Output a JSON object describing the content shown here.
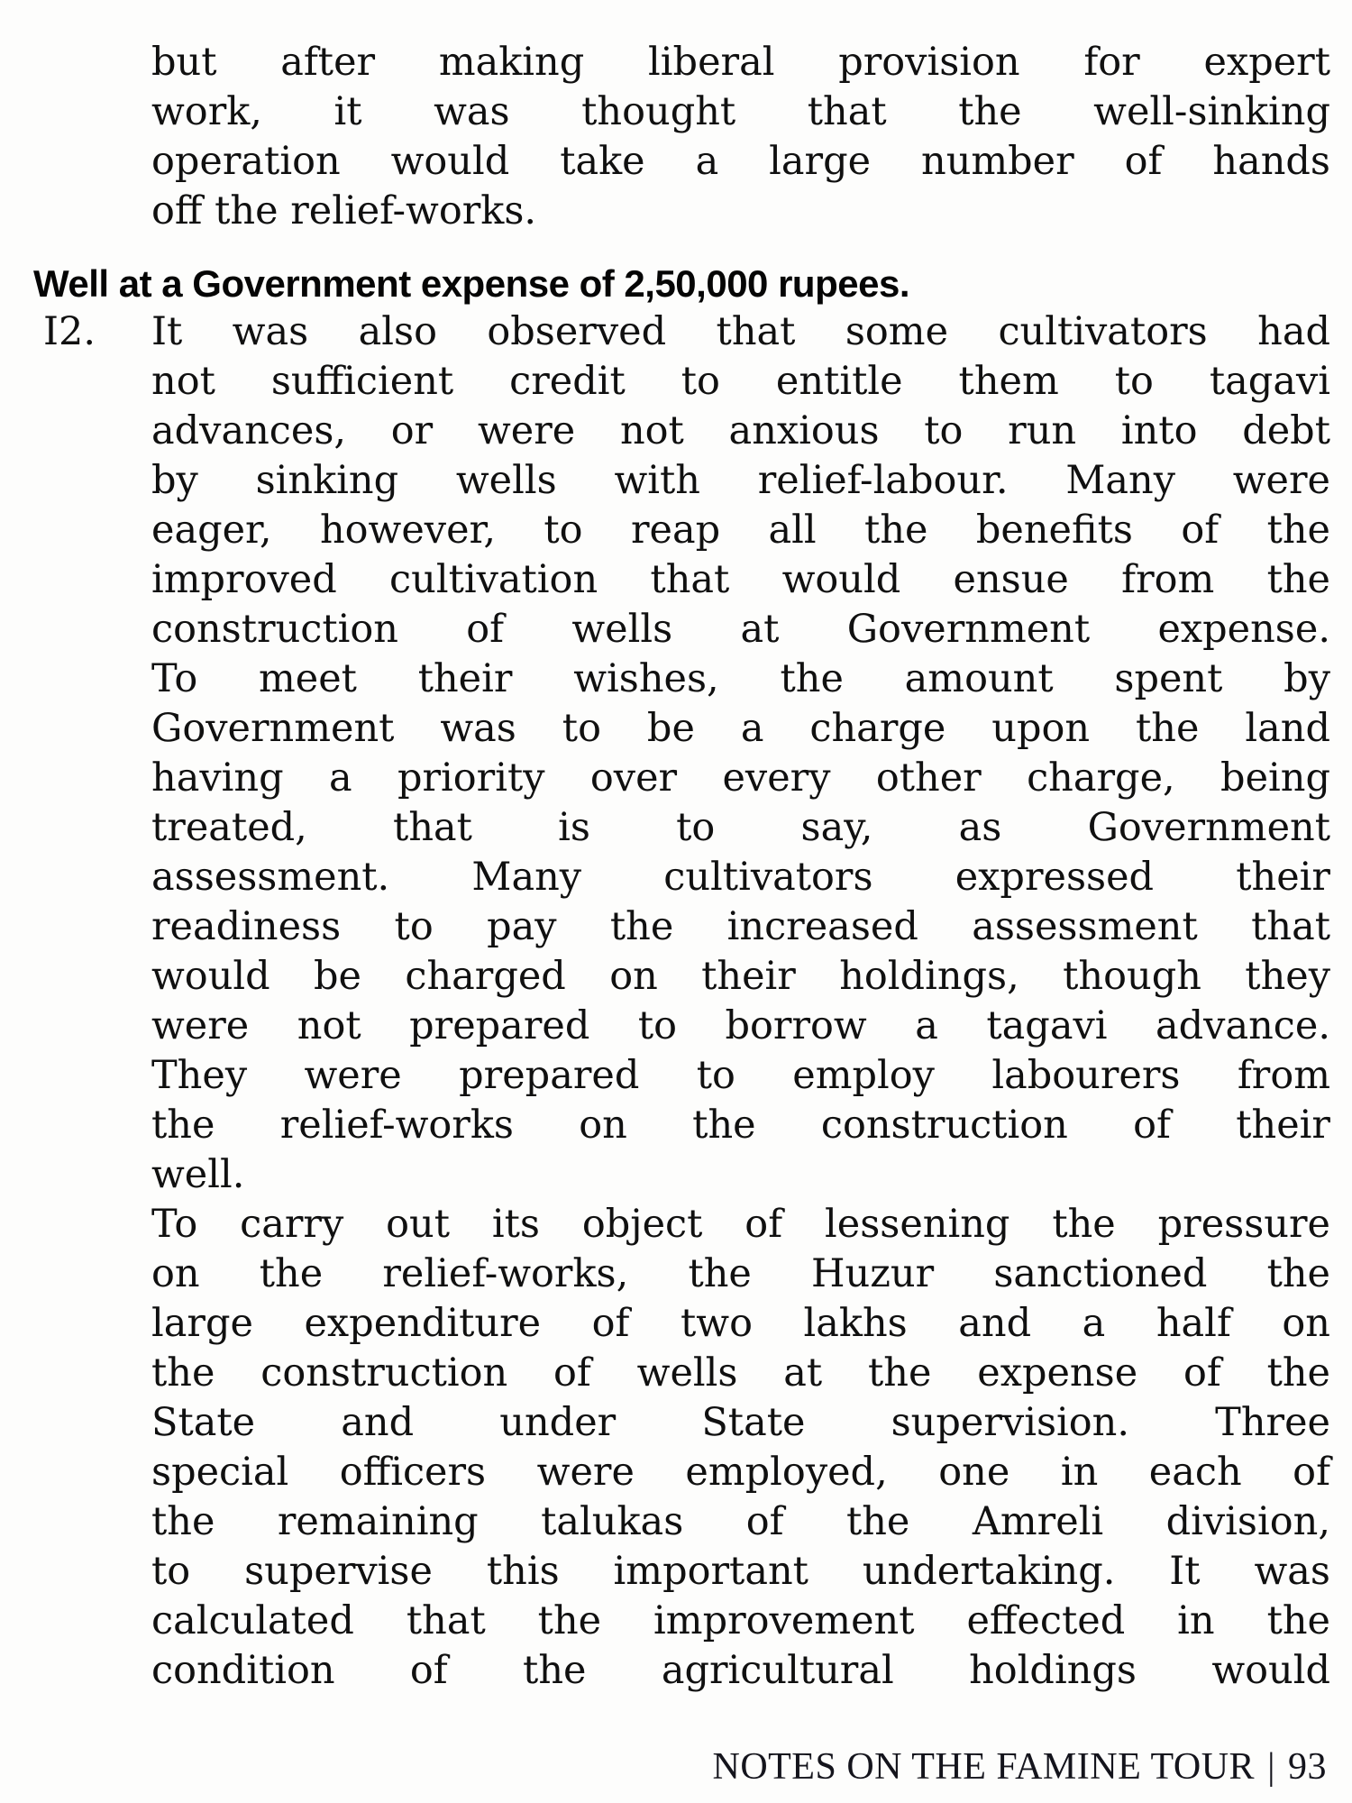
{
  "page": {
    "background": "#fdfdfc",
    "text_color": "#101010"
  },
  "content": {
    "section_heading": "Well at a Government expense of 2,50,000 rupees.",
    "paragraphs": [
      {
        "id": "intro",
        "number": "",
        "justify_last": false,
        "lines": [
          "but after making liberal provision for expert",
          "work, it was thought that the well-sinking",
          "operation would take a large number of hands",
          "off the relief-works."
        ]
      },
      {
        "id": "item-12",
        "number": "I2.",
        "justify_last": false,
        "lines": [
          "It was also observed that some cultivators had",
          "not sufficient credit to entitle them to tagavi",
          "advances, or were not anxious to run into debt",
          "by sinking wells with relief-labour. Many were",
          "eager, however, to reap all the benefits of the",
          "improved cultivation that would ensue from the",
          "construction of wells at Government expense.",
          "To meet their wishes, the amount spent by",
          "Government was to be a charge upon the land",
          "having a priority over every other charge, being",
          "treated, that is to say, as Government",
          "assessment. Many cultivators expressed their",
          "readiness to pay the increased assessment that",
          "would be charged on their holdings, though they",
          "were not prepared to borrow a tagavi advance.",
          "They were prepared to employ labourers from",
          "the relief-works on the construction of their",
          "well."
        ]
      },
      {
        "id": "closing",
        "number": "",
        "justify_last": true,
        "lines": [
          "To carry out its object of lessening the pressure",
          "on the relief-works, the Huzur sanctioned the",
          "large expenditure of two lakhs and a half on",
          "the construction of wells at the expense of the",
          "State and under State supervision. Three",
          "special officers were employed, one in each of",
          "the remaining talukas of the Amreli division,",
          "to supervise this important undertaking. It was",
          "calculated that the improvement effected in the",
          "condition of the agricultural holdings would"
        ]
      }
    ],
    "footer": {
      "title": "NOTES ON THE FAMINE TOUR",
      "separator": "|",
      "page_number": "93"
    }
  }
}
